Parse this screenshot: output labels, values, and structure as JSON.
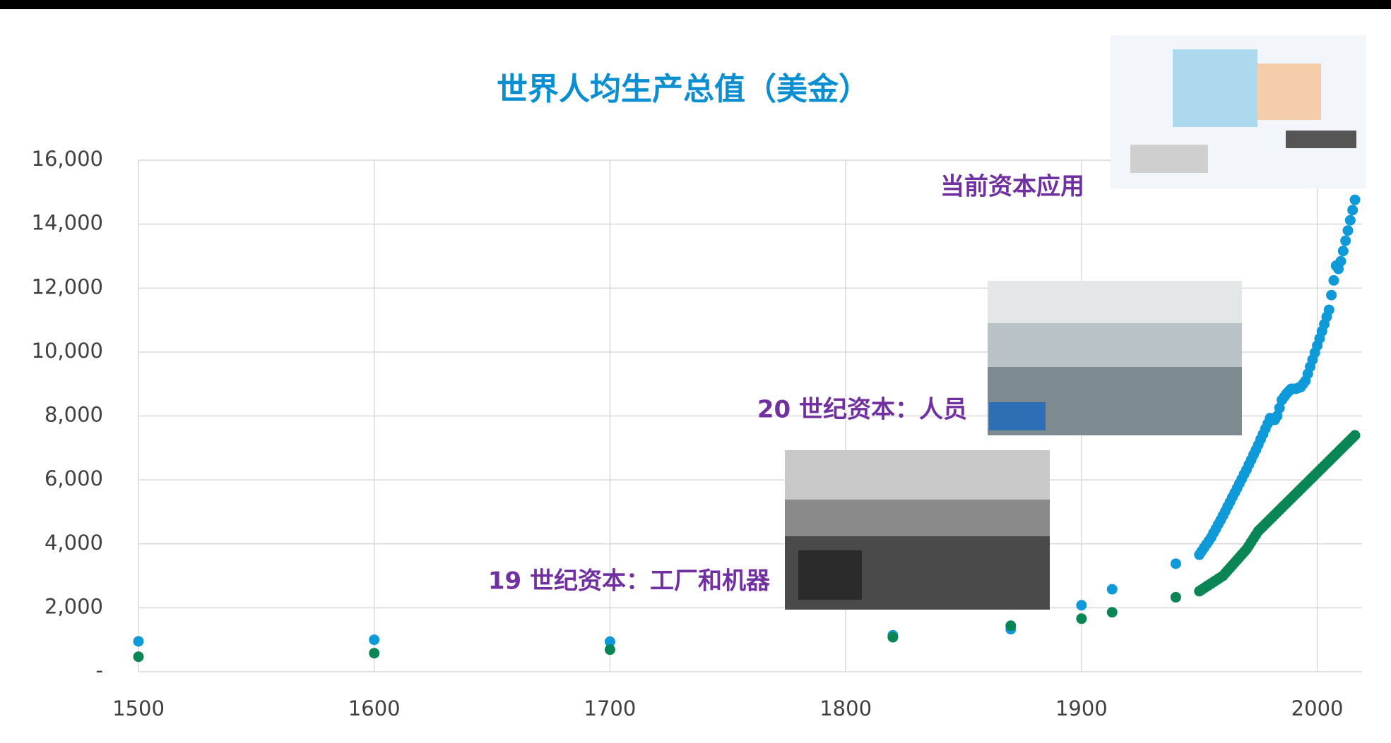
{
  "chart_data": {
    "type": "scatter",
    "title": "世界人均生产总值（美金）",
    "annotations": [
      "当前资本应用",
      "20 世纪资本：人员",
      "19 世纪资本：工厂和机器"
    ],
    "x": [
      1500,
      1600,
      1700,
      1820,
      1870,
      1900,
      1913,
      1940,
      1950,
      1951,
      1952,
      1953,
      1954,
      1955,
      1956,
      1957,
      1958,
      1959,
      1960,
      1961,
      1962,
      1963,
      1964,
      1965,
      1966,
      1967,
      1968,
      1969,
      1970,
      1971,
      1972,
      1973,
      1974,
      1975,
      1976,
      1977,
      1978,
      1979,
      1980,
      1981,
      1982,
      1983,
      1984,
      1985,
      1986,
      1987,
      1988,
      1989,
      1990,
      1991,
      1992,
      1993,
      1994,
      1995,
      1996,
      1997,
      1998,
      1999,
      2000,
      2001,
      2002,
      2003,
      2004,
      2005,
      2006,
      2007,
      2008,
      2009,
      2010,
      2011,
      2012,
      2013,
      2014,
      2015,
      2016
    ],
    "series": [
      {
        "color": "#0e9ad8",
        "values": [
          950,
          1000,
          940,
          1140,
          1330,
          2080,
          2580,
          3380,
          3660,
          3770,
          3880,
          3990,
          4090,
          4200,
          4340,
          4470,
          4610,
          4740,
          4880,
          5020,
          5170,
          5310,
          5460,
          5600,
          5740,
          5890,
          6030,
          6180,
          6320,
          6480,
          6630,
          6790,
          6940,
          7100,
          7270,
          7430,
          7600,
          7760,
          7930,
          7900,
          7880,
          8000,
          8250,
          8500,
          8600,
          8700,
          8780,
          8850,
          8850,
          8850,
          8880,
          8900,
          9000,
          9100,
          9320,
          9540,
          9760,
          9980,
          10200,
          10420,
          10650,
          10870,
          11100,
          11320,
          11780,
          12240,
          12700,
          12600,
          12840,
          13160,
          13480,
          13800,
          14120,
          14440,
          14760
        ]
      },
      {
        "color": "#0a8554",
        "values": [
          470,
          580,
          690,
          1080,
          1440,
          1660,
          1860,
          2330,
          2520,
          2568,
          2616,
          2664,
          2712,
          2760,
          2808,
          2856,
          2904,
          2952,
          3000,
          3083,
          3166,
          3249,
          3332,
          3415,
          3498,
          3581,
          3664,
          3747,
          3830,
          3944,
          4058,
          4172,
          4286,
          4400,
          4473,
          4546,
          4619,
          4692,
          4765,
          4838,
          4911,
          4984,
          5057,
          5130,
          5203,
          5276,
          5349,
          5422,
          5495,
          5568,
          5641,
          5714,
          5787,
          5860,
          5933,
          6006,
          6079,
          6152,
          6225,
          6298,
          6371,
          6444,
          6517,
          6590,
          6663,
          6736,
          6809,
          6882,
          6955,
          7028,
          7101,
          7174,
          7247,
          7320,
          7393
        ]
      }
    ],
    "xlim": [
      1500,
      2019
    ],
    "xticks": [
      1500,
      1600,
      1700,
      1800,
      1900,
      2000
    ],
    "ylim": [
      0,
      16000
    ],
    "yticks": [
      {
        "value": 0,
        "label": "-"
      },
      {
        "value": 2000,
        "label": "2,000"
      },
      {
        "value": 4000,
        "label": "4,000"
      },
      {
        "value": 6000,
        "label": "6,000"
      },
      {
        "value": 8000,
        "label": "8,000"
      },
      {
        "value": 10000,
        "label": "10,000"
      },
      {
        "value": 12000,
        "label": "12,000"
      },
      {
        "value": 14000,
        "label": "14,000"
      },
      {
        "value": 16000,
        "label": "16,000"
      }
    ],
    "grid": true
  }
}
